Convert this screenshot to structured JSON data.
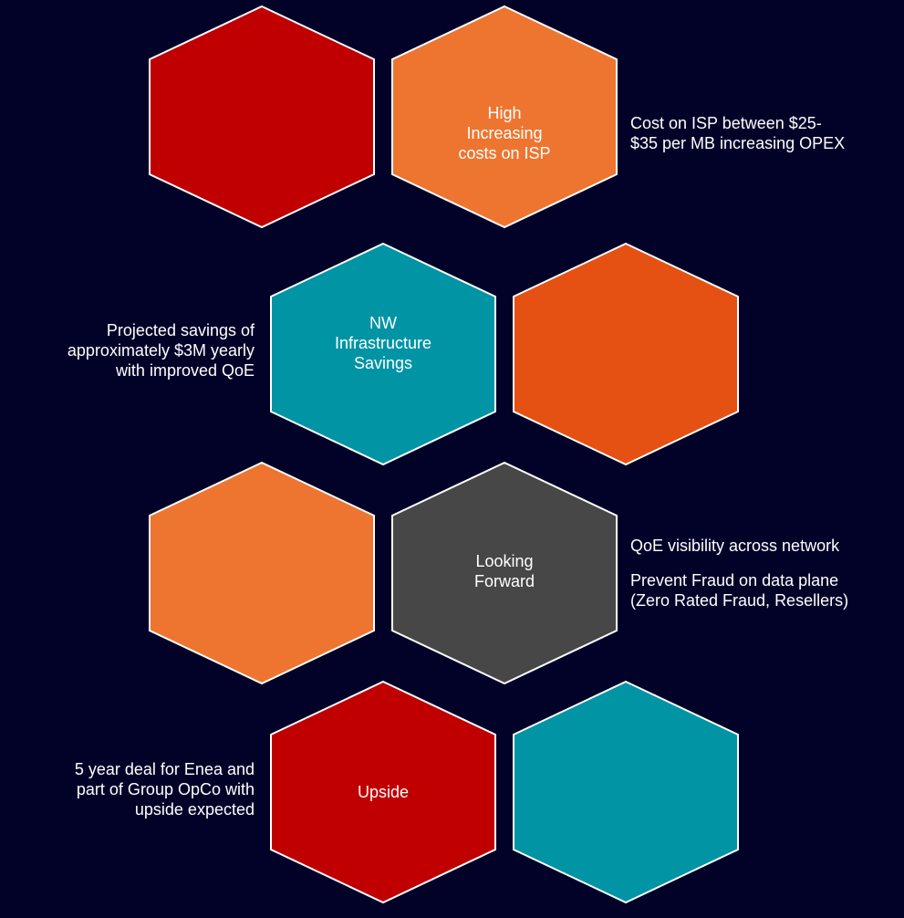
{
  "colors": {
    "background": "#020229",
    "hex_outline": "#ffffff"
  },
  "hexagons": [
    {
      "name": "hex-red-top",
      "color": "#c00000",
      "label": ""
    },
    {
      "name": "hex-isp-costs",
      "color": "#ee7530",
      "label": "High\nIncreasing\ncosts on ISP"
    },
    {
      "name": "hex-infrastructure-savings",
      "color": "#0094a5",
      "label": "NW\nInfrastructure\nSavings"
    },
    {
      "name": "hex-orange-dark",
      "color": "#e55113",
      "label": ""
    },
    {
      "name": "hex-orange-mid",
      "color": "#ee7530",
      "label": ""
    },
    {
      "name": "hex-looking-forward",
      "color": "#474747",
      "label": "Looking\nForward"
    },
    {
      "name": "hex-upside",
      "color": "#c00000",
      "label": "Upside"
    },
    {
      "name": "hex-teal-bottom",
      "color": "#0094a5",
      "label": ""
    }
  ],
  "side_notes": {
    "isp_cost": "Cost on ISP between $25-\n$35 per MB increasing OPEX",
    "savings": "Projected savings of\napproximately $3M yearly\nwith improved QoE",
    "qoe_visibility": "QoE visibility across network",
    "prevent_fraud": "Prevent Fraud on data plane\n(Zero Rated Fraud, Resellers)",
    "deal": "5 year deal for Enea and\npart of Group OpCo with\nupside expected"
  }
}
